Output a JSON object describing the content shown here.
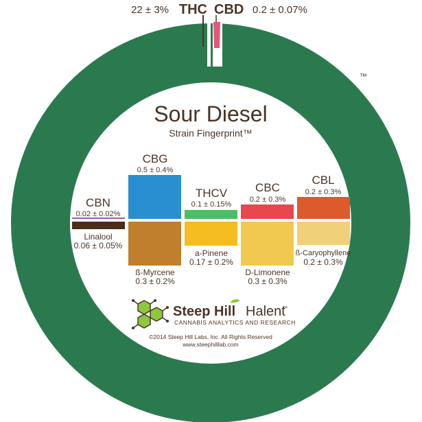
{
  "header": {
    "thc_value": "22 ± 3%",
    "thc_label": "THC",
    "cbd_label": "CBD",
    "cbd_value": "0.2 ± 0.07%",
    "tm_mark": "™"
  },
  "center": {
    "strain_name": "Sour Diesel",
    "subtitle": "Strain Fingerprint™"
  },
  "cannabinoids": [
    {
      "label": "CBN",
      "value": "0.02 ± 0.02%",
      "color": "#9b59b6"
    },
    {
      "label": "CBG",
      "value": "0.5 ± 0.4%",
      "color": "#2a8fd0"
    },
    {
      "label": "THCV",
      "value": "0.1 ± 0.15%",
      "color": "#4dbd6a"
    },
    {
      "label": "CBC",
      "value": "0.2 ± 0.3%",
      "color": "#e8474d"
    },
    {
      "label": "CBL",
      "value": "0.2 ± 0.3%",
      "color": "#dc5a2b"
    }
  ],
  "terpenes": [
    {
      "label": "Linalool",
      "value": "0.06 ± 0.05%",
      "color": "#4a2e1a"
    },
    {
      "label": "ß-Myrcene",
      "value": "0.3 ± 0.2%",
      "color": "#c07f2c"
    },
    {
      "label": "a-Pinene",
      "value": "0.17 ± 0.2%",
      "color": "#f5bd20"
    },
    {
      "label": "D-Limonene",
      "value": "0.3 ± 0.3%",
      "color": "#f1c94e"
    },
    {
      "label": "ß-Caryophyllene",
      "value": "0.2 ± 0.3%",
      "color": "#f0d078"
    }
  ],
  "branding": {
    "logo_name_bold": "Steep Hill",
    "logo_name_light": "Halent",
    "logo_tm": "™",
    "tagline": "CANNABIS ANALYTICS AND RESEARCH",
    "copyright": "©2014 Steep Hill Labs, Inc. All Rights Reserved",
    "website": "www.steephilllab.com"
  },
  "colors": {
    "ring_green": "#2b7a4f",
    "thc_pink": "#e7557a",
    "text_brown": "#4a3426",
    "logo_green": "#8dc63f"
  },
  "icons": [
    "hexagon-molecule-logo-icon",
    "hill-leaf-icon"
  ]
}
